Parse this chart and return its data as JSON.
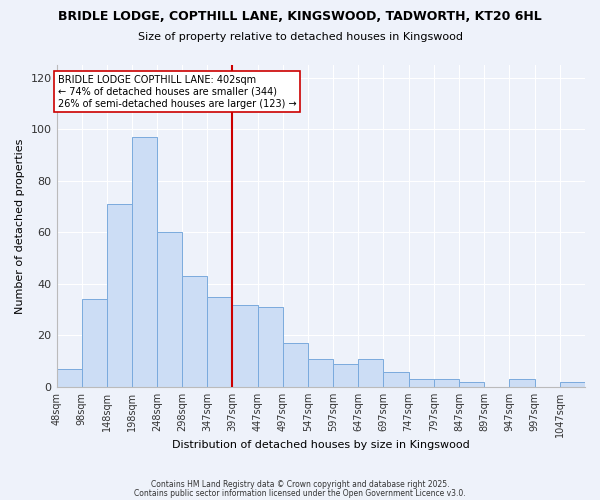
{
  "title": "BRIDLE LODGE, COPTHILL LANE, KINGSWOOD, TADWORTH, KT20 6HL",
  "subtitle": "Size of property relative to detached houses in Kingswood",
  "xlabel": "Distribution of detached houses by size in Kingswood",
  "ylabel": "Number of detached properties",
  "bar_color": "#ccddf5",
  "bar_edge_color": "#7aaadd",
  "bg_color": "#eef2fa",
  "grid_color": "#ffffff",
  "bin_edges": [
    48,
    98,
    148,
    198,
    248,
    298,
    347,
    397,
    447,
    497,
    547,
    597,
    647,
    697,
    747,
    797,
    847,
    897,
    947,
    997,
    1047,
    1097
  ],
  "values": [
    7,
    34,
    71,
    97,
    60,
    43,
    35,
    32,
    31,
    17,
    11,
    9,
    11,
    6,
    3,
    3,
    2,
    0,
    3,
    0,
    2
  ],
  "xtick_labels": [
    "48sqm",
    "98sqm",
    "148sqm",
    "198sqm",
    "248sqm",
    "298sqm",
    "347sqm",
    "397sqm",
    "447sqm",
    "497sqm",
    "547sqm",
    "597sqm",
    "647sqm",
    "697sqm",
    "747sqm",
    "797sqm",
    "847sqm",
    "897sqm",
    "947sqm",
    "997sqm",
    "1047sqm"
  ],
  "vline_x": 397,
  "vline_color": "#cc0000",
  "annotation_title": "BRIDLE LODGE COPTHILL LANE: 402sqm",
  "annotation_line1": "← 74% of detached houses are smaller (344)",
  "annotation_line2": "26% of semi-detached houses are larger (123) →",
  "annotation_box_color": "#ffffff",
  "annotation_box_edge": "#cc0000",
  "ylim": [
    0,
    125
  ],
  "yticks": [
    0,
    20,
    40,
    60,
    80,
    100,
    120
  ],
  "footer1": "Contains HM Land Registry data © Crown copyright and database right 2025.",
  "footer2": "Contains public sector information licensed under the Open Government Licence v3.0."
}
